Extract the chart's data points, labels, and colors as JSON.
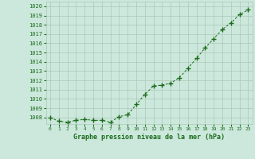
{
  "x": [
    0,
    1,
    2,
    3,
    4,
    5,
    6,
    7,
    8,
    9,
    10,
    11,
    12,
    13,
    14,
    15,
    16,
    17,
    18,
    19,
    20,
    21,
    22,
    23
  ],
  "y": [
    1008.0,
    1007.6,
    1007.5,
    1007.7,
    1007.8,
    1007.7,
    1007.7,
    1007.5,
    1008.1,
    1008.3,
    1009.4,
    1010.5,
    1011.4,
    1011.5,
    1011.7,
    1012.3,
    1013.3,
    1014.4,
    1015.5,
    1016.5,
    1017.5,
    1018.2,
    1019.1,
    1019.6
  ],
  "line_color": "#1a6b1a",
  "marker": "+",
  "marker_color": "#1a6b1a",
  "bg_color": "#cce8dc",
  "grid_color": "#aac8b8",
  "xlabel": "Graphe pression niveau de la mer (hPa)",
  "xlabel_color": "#1a6b1a",
  "tick_color": "#1a6b1a",
  "ylim": [
    1007.3,
    1020.5
  ],
  "yticks": [
    1008,
    1009,
    1010,
    1011,
    1012,
    1013,
    1014,
    1015,
    1016,
    1017,
    1018,
    1019,
    1020
  ],
  "xlim": [
    -0.5,
    23.5
  ],
  "xticks": [
    0,
    1,
    2,
    3,
    4,
    5,
    6,
    7,
    8,
    9,
    10,
    11,
    12,
    13,
    14,
    15,
    16,
    17,
    18,
    19,
    20,
    21,
    22,
    23
  ],
  "font_family": "monospace"
}
